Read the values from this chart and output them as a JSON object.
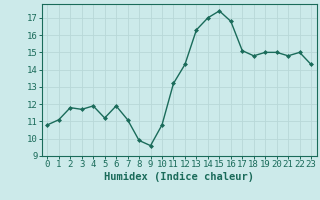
{
  "x": [
    0,
    1,
    2,
    3,
    4,
    5,
    6,
    7,
    8,
    9,
    10,
    11,
    12,
    13,
    14,
    15,
    16,
    17,
    18,
    19,
    20,
    21,
    22,
    23
  ],
  "y": [
    10.8,
    11.1,
    11.8,
    11.7,
    11.9,
    11.2,
    11.9,
    11.1,
    9.9,
    9.6,
    10.8,
    13.2,
    14.3,
    16.3,
    17.0,
    17.4,
    16.8,
    15.1,
    14.8,
    15.0,
    15.0,
    14.8,
    15.0,
    14.3
  ],
  "xlabel": "Humidex (Indice chaleur)",
  "ylim": [
    9,
    17.8
  ],
  "xlim": [
    -0.5,
    23.5
  ],
  "yticks": [
    9,
    10,
    11,
    12,
    13,
    14,
    15,
    16,
    17
  ],
  "xticks": [
    0,
    1,
    2,
    3,
    4,
    5,
    6,
    7,
    8,
    9,
    10,
    11,
    12,
    13,
    14,
    15,
    16,
    17,
    18,
    19,
    20,
    21,
    22,
    23
  ],
  "line_color": "#1a6b5a",
  "marker": "D",
  "marker_size": 2.0,
  "bg_color": "#cceaea",
  "grid_color": "#b8d8d8",
  "tick_color": "#1a6b5a",
  "label_color": "#1a6b5a",
  "xlabel_fontsize": 7.5,
  "tick_fontsize": 6.5,
  "linewidth": 1.0
}
